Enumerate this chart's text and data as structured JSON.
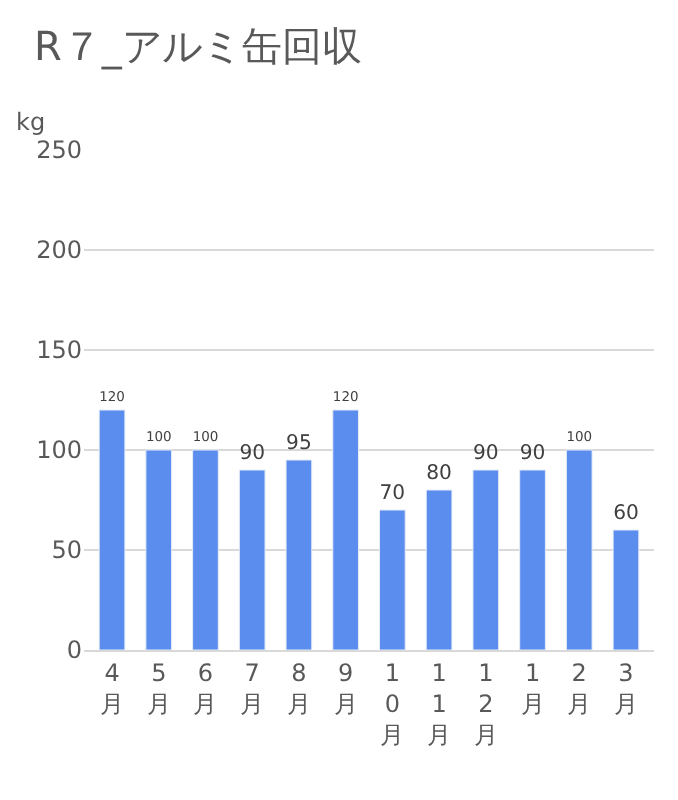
{
  "chart_data": {
    "type": "bar",
    "title": "R７_アルミ缶回収",
    "ylabel": "kg",
    "categories": [
      "4月",
      "5月",
      "6月",
      "7月",
      "8月",
      "9月",
      "10月",
      "11月",
      "12月",
      "1月",
      "2月",
      "3月"
    ],
    "values": [
      120,
      100,
      100,
      90,
      95,
      120,
      70,
      80,
      90,
      90,
      100,
      60
    ],
    "color": "#5b8def",
    "ylim": [
      0,
      250
    ],
    "yticks": [
      0,
      50,
      100,
      150,
      200,
      250
    ],
    "grid": "y",
    "data_labels": true
  }
}
